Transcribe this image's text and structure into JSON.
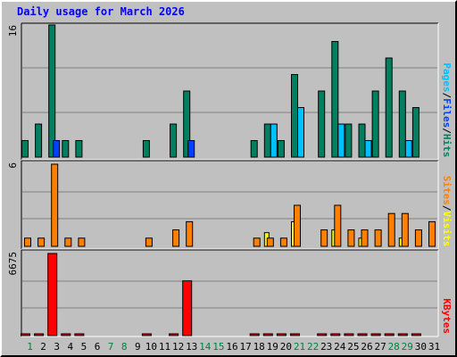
{
  "chart_data": {
    "type": "bar",
    "title": "Daily usage for March 2026",
    "categories": [
      "1",
      "2",
      "3",
      "4",
      "5",
      "6",
      "7",
      "8",
      "9",
      "10",
      "11",
      "12",
      "13",
      "14",
      "15",
      "16",
      "17",
      "18",
      "19",
      "20",
      "21",
      "22",
      "23",
      "24",
      "25",
      "26",
      "27",
      "28",
      "29",
      "30",
      "31"
    ],
    "weekend_days": [
      1,
      7,
      8,
      14,
      15,
      21,
      22,
      28,
      29
    ],
    "panels": [
      {
        "id": "top",
        "ymax": 16,
        "ymax_label": "16",
        "legend": [
          {
            "text": "Pages",
            "color": "#00c0ff"
          },
          {
            "text": "/",
            "color": "#000000"
          },
          {
            "text": "Files",
            "color": "#0040ff"
          },
          {
            "text": "/",
            "color": "#000000"
          },
          {
            "text": "Hits",
            "color": "#008060"
          }
        ],
        "series": [
          {
            "name": "Hits",
            "color": "#008060",
            "values": [
              2,
              4,
              16,
              2,
              2,
              0,
              0,
              0,
              0,
              2,
              0,
              4,
              8,
              0,
              0,
              0,
              0,
              2,
              4,
              2,
              10,
              0,
              8,
              14,
              4,
              4,
              8,
              12,
              8,
              6,
              0
            ]
          },
          {
            "name": "Files",
            "color": "#0040ff",
            "values": [
              0,
              0,
              2,
              0,
              0,
              0,
              0,
              0,
              0,
              0,
              0,
              0,
              2,
              0,
              0,
              0,
              0,
              0,
              0,
              0,
              0,
              0,
              0,
              0,
              0,
              0,
              0,
              0,
              0,
              0,
              0
            ]
          },
          {
            "name": "Pages",
            "color": "#00c0ff",
            "values": [
              0,
              0,
              0,
              0,
              0,
              0,
              0,
              0,
              0,
              0,
              0,
              0,
              0,
              0,
              0,
              0,
              0,
              0,
              4,
              0,
              6,
              0,
              0,
              4,
              0,
              2,
              0,
              0,
              2,
              0,
              0
            ]
          }
        ]
      },
      {
        "id": "middle",
        "ymax": 6,
        "ymax_label": "6",
        "legend": [
          {
            "text": "Sites",
            "color": "#ff8000"
          },
          {
            "text": "/",
            "color": "#000000"
          },
          {
            "text": "Visits",
            "color": "#ffff00"
          }
        ],
        "series": [
          {
            "name": "Visits",
            "color": "#ffff00",
            "values": [
              0,
              0,
              0,
              0,
              0,
              0,
              0,
              0,
              0,
              0,
              0,
              0,
              0,
              0,
              0,
              0,
              0,
              0,
              1,
              0,
              1.8,
              0,
              0,
              1.2,
              0,
              0.6,
              0,
              0,
              0.6,
              0,
              0
            ]
          },
          {
            "name": "Sites",
            "color": "#ff8000",
            "values": [
              0.6,
              0.6,
              6,
              0.6,
              0.6,
              0,
              0,
              0,
              0,
              0.6,
              0,
              1.2,
              1.8,
              0,
              0,
              0,
              0,
              0.6,
              0.6,
              0.6,
              3,
              0,
              1.2,
              3,
              1.2,
              1.2,
              1.2,
              2.4,
              2.4,
              1.2,
              1.8
            ]
          }
        ]
      },
      {
        "id": "bottom",
        "ymax": 6675,
        "ymax_label": "6675",
        "legend": [
          {
            "text": "KBytes",
            "color": "#ff0000"
          }
        ],
        "series": [
          {
            "name": "KBytes",
            "color": "#ff0000",
            "values": [
              1,
              1,
              6675,
              1,
              1,
              0,
              0,
              0,
              0,
              1,
              0,
              1,
              4450,
              0,
              0,
              0,
              0,
              1,
              1,
              1,
              1,
              0,
              1,
              1,
              1,
              1,
              1,
              1,
              1,
              1,
              0
            ]
          }
        ]
      }
    ]
  },
  "colors": {
    "background": "#c0c0c0",
    "weekday_label": "#000000",
    "weekend_label": "#008040",
    "grid": "#808080"
  }
}
